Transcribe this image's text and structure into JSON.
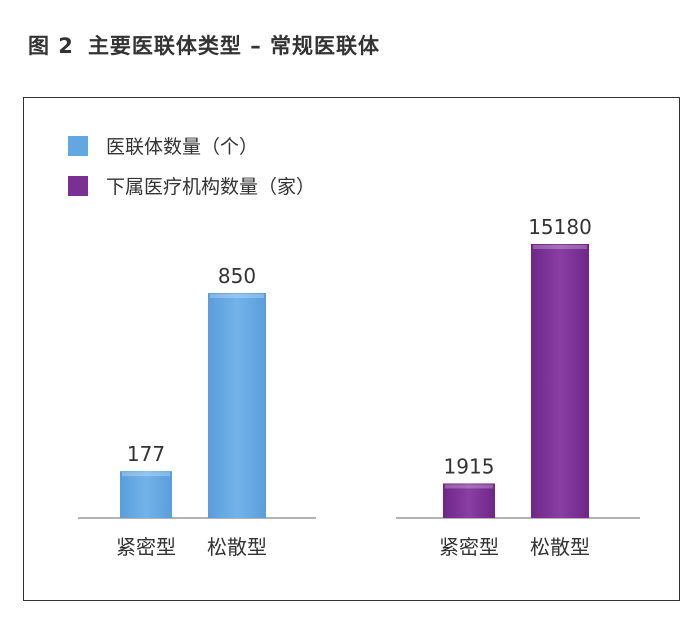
{
  "figure": {
    "number": "图 2",
    "title": "主要医联体类型 – 常规医联体"
  },
  "colors": {
    "series1": "#62a6e2",
    "series2": "#7a2f93",
    "axis": "#9a9a9a"
  },
  "chart_data": [
    {
      "type": "bar",
      "categories": [
        "紧密型",
        "松散型"
      ],
      "series": [
        {
          "name": "医联体数量（个）",
          "values": [
            177,
            850
          ]
        }
      ],
      "data_labels": [
        "177",
        "850"
      ],
      "ylim": [
        0,
        1000
      ]
    },
    {
      "type": "bar",
      "categories": [
        "紧密型",
        "松散型"
      ],
      "series": [
        {
          "name": "下属医疗机构数量（家）",
          "values": [
            1915,
            15180
          ]
        }
      ],
      "data_labels": [
        "1915",
        "15180"
      ],
      "ylim": [
        0,
        17000
      ]
    }
  ],
  "legend": [
    {
      "label": "医联体数量（个）",
      "color": "#62a6e2"
    },
    {
      "label": "下属医疗机构数量（家）",
      "color": "#7a2f93"
    }
  ]
}
